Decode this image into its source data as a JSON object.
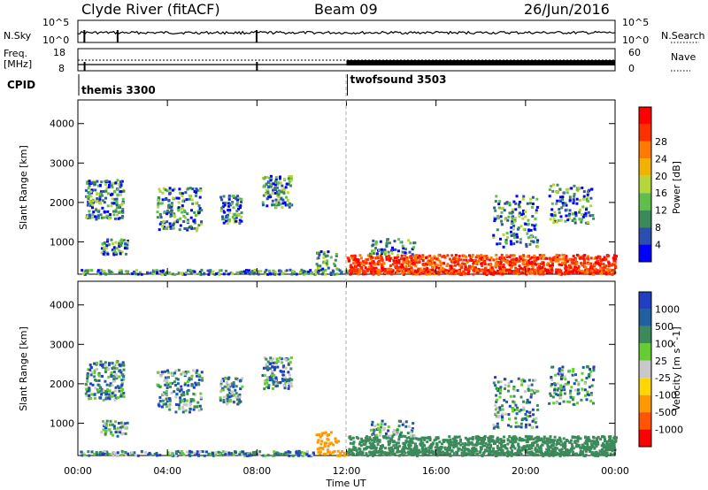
{
  "header": {
    "title_left": "Clyde River (fitACF)",
    "title_center": "Beam 09",
    "title_right": "26/Jun/2016"
  },
  "strips": {
    "nsky_label": "N.Sky",
    "nsearch_label": "N.Search",
    "freq_label_1": "Freq.",
    "freq_label_2": "[MHz]",
    "nave_label": "Nave",
    "cpid_label": "CPID",
    "left_ticks_top": [
      "10^5",
      "10^0"
    ],
    "right_ticks_top": [
      "10^5",
      "10^0"
    ],
    "left_ticks_freq": [
      "18",
      "8"
    ],
    "right_ticks_nave": [
      "60",
      "0"
    ],
    "cpid_segments": [
      {
        "name": "themis 3300",
        "start_hour": 0,
        "end_hour": 12
      },
      {
        "name": "twofsound 3503",
        "start_hour": 12,
        "end_hour": 24
      }
    ]
  },
  "colors": {
    "power": [
      "#0000ff",
      "#2a4fb0",
      "#3c8a5a",
      "#5fbf4a",
      "#b5d63a",
      "#f0b400",
      "#ff7a00",
      "#ff3000",
      "#ff0000"
    ],
    "velocity": [
      "#2040c0",
      "#2060a0",
      "#3c8a5a",
      "#66cc33",
      "#c8c8c8",
      "#ffd700",
      "#ff9900",
      "#ff5500",
      "#ff0000"
    ]
  },
  "chart_data": [
    {
      "type": "heatmap",
      "ylabel": "Slant Range [km]",
      "yticks": [
        "1000",
        "2000",
        "3000",
        "4000"
      ],
      "ylim": [
        180,
        4600
      ],
      "xlim_hours": [
        0,
        24
      ],
      "colorbar_label": "Power [dB]",
      "colorbar_ticks": [
        "4",
        "8",
        "12",
        "16",
        "20",
        "24",
        "28"
      ],
      "colorbar_range": [
        0,
        30
      ]
    },
    {
      "type": "heatmap",
      "xlabel": "Time UT",
      "xticks": [
        "00:00",
        "04:00",
        "08:00",
        "12:00",
        "16:00",
        "20:00",
        "00:00"
      ],
      "ylabel": "Slant Range [km]",
      "yticks": [
        "1000",
        "2000",
        "3000",
        "4000"
      ],
      "ylim": [
        180,
        4600
      ],
      "xlim_hours": [
        0,
        24
      ],
      "colorbar_label": "Velocity [m s^-1]",
      "colorbar_ticks": [
        "1000",
        "500",
        "100",
        "25",
        "-25",
        "-100",
        "-500",
        "-1000"
      ]
    }
  ]
}
